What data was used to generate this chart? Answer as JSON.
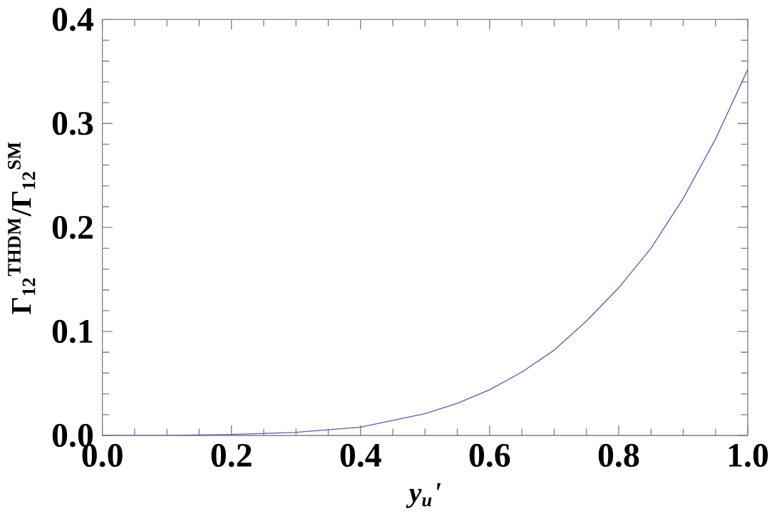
{
  "chart_data": {
    "type": "line",
    "xlabel": "y$_{u}$'",
    "ylabel": "Γ$_{12}$$^{THDM}$/Γ$_{12}$$^{SM}$",
    "xlim": [
      0,
      1
    ],
    "ylim": [
      0,
      0.4
    ],
    "xticks": [
      {
        "value": 0,
        "label": "0.0"
      },
      0.2,
      0.4,
      0.6,
      0.8,
      {
        "value": 1,
        "label": "1.0"
      }
    ],
    "yticks": [
      {
        "value": 0,
        "label": "0.0"
      },
      0.1,
      0.2,
      0.3,
      0.4
    ],
    "marker": "none",
    "line_style": "solid",
    "series": [
      {
        "color": "#5a5ab0",
        "x": [
          0,
          0.1,
          0.2,
          0.3,
          0.4,
          0.5,
          0.55,
          0.6,
          0.65,
          0.7,
          0.75,
          0.8,
          0.85,
          0.9,
          0.95,
          1.0
        ],
        "values": [
          0,
          0,
          0.001,
          0.003,
          0.008,
          0.021,
          0.031,
          0.044,
          0.061,
          0.082,
          0.11,
          0.142,
          0.18,
          0.228,
          0.285,
          0.352
        ]
      }
    ]
  }
}
